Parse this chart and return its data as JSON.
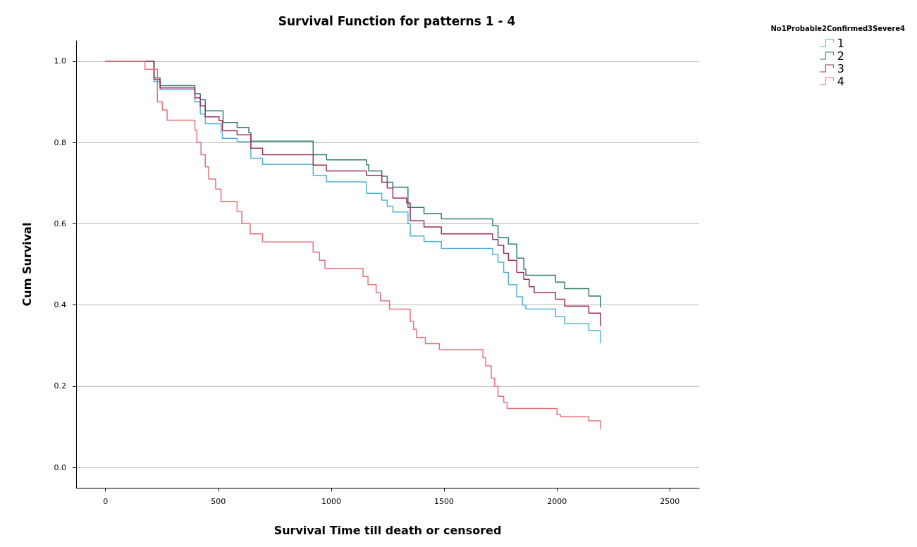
{
  "chart_data": {
    "type": "step",
    "title": "Survival Function for patterns 1 - 4",
    "xlabel": "Survival Time till death or censored",
    "ylabel": "Cum Survival",
    "legend_title": "No1Probable2Confirmed3Severe4",
    "series": [
      {
        "name": "1",
        "color": "#4fb3d9",
        "x": [
          0,
          215,
          242,
          396,
          420,
          442,
          512,
          518,
          583,
          644,
          696,
          920,
          979,
          1156,
          1224,
          1248,
          1273,
          1340,
          1350,
          1411,
          1488,
          1715,
          1739,
          1764,
          1785,
          1822,
          1847,
          1862,
          1994,
          2034,
          2141,
          2193
        ],
        "values": [
          1,
          0.95,
          0.93,
          0.9,
          0.87,
          0.846,
          0.824,
          0.81,
          0.802,
          0.761,
          0.746,
          0.719,
          0.703,
          0.675,
          0.658,
          0.643,
          0.629,
          0.6,
          0.57,
          0.556,
          0.539,
          0.524,
          0.505,
          0.48,
          0.45,
          0.42,
          0.4,
          0.39,
          0.371,
          0.354,
          0.337,
          0.307
        ]
      },
      {
        "name": "2",
        "color": "#2e7d6e",
        "x": [
          0,
          215,
          242,
          396,
          420,
          442,
          521,
          583,
          635,
          644,
          920,
          979,
          1156,
          1166,
          1224,
          1248,
          1273,
          1340,
          1411,
          1488,
          1715,
          1739,
          1785,
          1822,
          1853,
          1862,
          1994,
          2034,
          2141,
          2193
        ],
        "values": [
          1,
          0.959,
          0.94,
          0.92,
          0.905,
          0.878,
          0.849,
          0.837,
          0.824,
          0.803,
          0.77,
          0.757,
          0.745,
          0.73,
          0.717,
          0.702,
          0.69,
          0.64,
          0.625,
          0.612,
          0.595,
          0.566,
          0.55,
          0.515,
          0.488,
          0.473,
          0.456,
          0.44,
          0.422,
          0.395
        ]
      },
      {
        "name": "3",
        "color": "#a0305a",
        "x": [
          0,
          215,
          242,
          396,
          420,
          442,
          503,
          518,
          583,
          644,
          696,
          920,
          979,
          1156,
          1224,
          1248,
          1273,
          1334,
          1350,
          1411,
          1488,
          1715,
          1739,
          1764,
          1785,
          1822,
          1853,
          1877,
          1899,
          1994,
          2034,
          2141,
          2193
        ],
        "values": [
          1,
          0.955,
          0.934,
          0.91,
          0.89,
          0.863,
          0.854,
          0.829,
          0.819,
          0.786,
          0.77,
          0.744,
          0.73,
          0.719,
          0.702,
          0.688,
          0.663,
          0.651,
          0.607,
          0.592,
          0.575,
          0.561,
          0.547,
          0.527,
          0.51,
          0.48,
          0.463,
          0.445,
          0.43,
          0.414,
          0.397,
          0.38,
          0.349
        ]
      },
      {
        "name": "4",
        "color": "#e8707a",
        "x": [
          0,
          175,
          230,
          252,
          273,
          396,
          405,
          423,
          442,
          457,
          488,
          512,
          583,
          604,
          641,
          696,
          920,
          948,
          972,
          1141,
          1163,
          1199,
          1218,
          1258,
          1350,
          1365,
          1377,
          1417,
          1479,
          1672,
          1684,
          1709,
          1724,
          1739,
          1764,
          1779,
          2000,
          2015,
          2141,
          2193
        ],
        "values": [
          1,
          0.98,
          0.9,
          0.88,
          0.855,
          0.83,
          0.8,
          0.77,
          0.74,
          0.71,
          0.685,
          0.655,
          0.63,
          0.6,
          0.575,
          0.555,
          0.53,
          0.51,
          0.49,
          0.47,
          0.45,
          0.43,
          0.41,
          0.39,
          0.36,
          0.34,
          0.32,
          0.305,
          0.29,
          0.27,
          0.25,
          0.22,
          0.2,
          0.175,
          0.16,
          0.145,
          0.13,
          0.125,
          0.115,
          0.095
        ]
      }
    ],
    "xlim": [
      -130,
      2630
    ],
    "xticks": [
      0,
      500,
      1000,
      1500,
      2000,
      2500
    ],
    "ylim": [
      -0.05,
      1.05
    ],
    "yticks": [
      {
        "value": 0,
        "label": "0.0"
      },
      {
        "value": 0.2,
        "label": "0.2"
      },
      {
        "value": 0.4,
        "label": "0.4"
      },
      {
        "value": 0.6,
        "label": "0.6"
      },
      {
        "value": 0.8,
        "label": "0.8"
      },
      {
        "value": 1,
        "label": "1.0"
      }
    ],
    "grid": "y",
    "legend": "top right",
    "line_style": "solid",
    "marker": "none"
  }
}
